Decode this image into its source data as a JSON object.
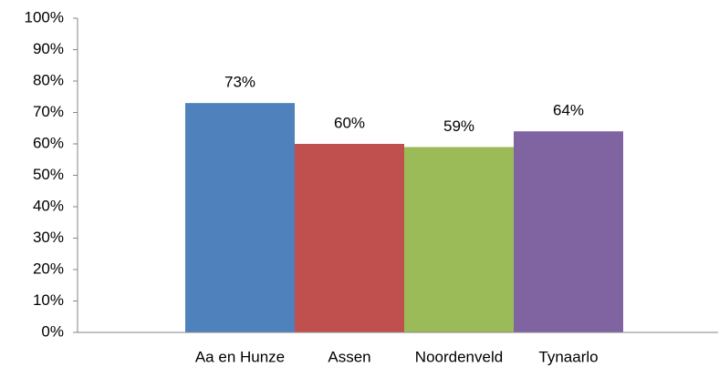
{
  "chart_data": {
    "type": "bar",
    "categories": [
      "Aa en Hunze",
      "Assen",
      "Noordenveld",
      "Tynaarlo"
    ],
    "values": [
      73,
      60,
      59,
      64
    ],
    "value_labels": [
      "73%",
      "60%",
      "59%",
      "64%"
    ],
    "colors": [
      "#4f81bd",
      "#c0504d",
      "#9bbb59",
      "#8064a2"
    ],
    "ylim": [
      0,
      100
    ],
    "yticks": [
      {
        "value": 0,
        "label": "0%"
      },
      {
        "value": 10,
        "label": "10%"
      },
      {
        "value": 20,
        "label": "20%"
      },
      {
        "value": 30,
        "label": "30%"
      },
      {
        "value": 40,
        "label": "40%"
      },
      {
        "value": 50,
        "label": "50%"
      },
      {
        "value": 60,
        "label": "60%"
      },
      {
        "value": 70,
        "label": "70%"
      },
      {
        "value": 80,
        "label": "80%"
      },
      {
        "value": 90,
        "label": "90%"
      },
      {
        "value": 100,
        "label": "100%"
      }
    ],
    "grid": false
  }
}
